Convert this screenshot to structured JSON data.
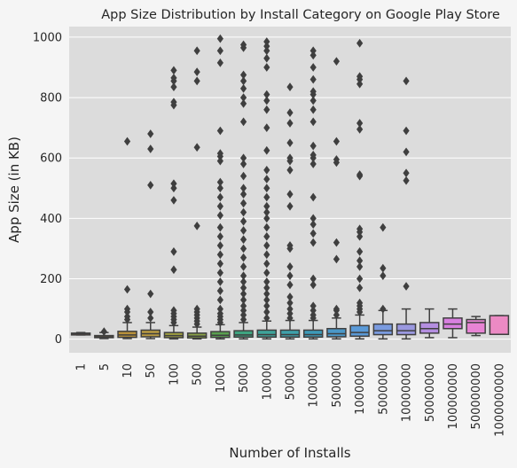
{
  "chart_data": {
    "type": "box",
    "title": "App Size Distribution by Install Category on Google Play Store",
    "xlabel": "Number of Installs",
    "ylabel": "App Size (in KB)",
    "ylim": [
      -45,
      1035
    ],
    "yticks": [
      0,
      200,
      400,
      600,
      800,
      1000
    ],
    "grid": true,
    "background": "#dcdcdc",
    "categories": [
      "1",
      "5",
      "10",
      "50",
      "100",
      "500",
      "1000",
      "5000",
      "10000",
      "50000",
      "100000",
      "500000",
      "1000000",
      "5000000",
      "10000000",
      "50000000",
      "100000000",
      "500000000",
      "1000000000"
    ],
    "boxes": [
      {
        "whislo": 14,
        "q1": 16,
        "med": 18,
        "q3": 20,
        "whishi": 22,
        "color": "#c8504b",
        "fliers": []
      },
      {
        "whislo": 2,
        "q1": 5,
        "med": 8,
        "q3": 12,
        "whishi": 22,
        "color": "#b07838",
        "fliers": [
          25
        ]
      },
      {
        "whislo": 2,
        "q1": 6,
        "med": 14,
        "q3": 26,
        "whishi": 55,
        "color": "#b8903a",
        "fliers": [
          65,
          75,
          90,
          100,
          165,
          655
        ]
      },
      {
        "whislo": 2,
        "q1": 8,
        "med": 18,
        "q3": 30,
        "whishi": 55,
        "color": "#b89a42",
        "fliers": [
          70,
          90,
          150,
          510,
          630,
          680
        ]
      },
      {
        "whislo": 1,
        "q1": 5,
        "med": 12,
        "q3": 22,
        "whishi": 45,
        "color": "#a0a040",
        "fliers": [
          55,
          65,
          75,
          85,
          95,
          230,
          290,
          460,
          500,
          515,
          775,
          785,
          835,
          855,
          865,
          890
        ]
      },
      {
        "whislo": 1,
        "q1": 4,
        "med": 10,
        "q3": 20,
        "whishi": 40,
        "color": "#8aa248",
        "fliers": [
          50,
          60,
          70,
          80,
          90,
          100,
          375,
          635,
          855,
          885,
          955
        ]
      },
      {
        "whislo": 1,
        "q1": 6,
        "med": 13,
        "q3": 25,
        "whishi": 48,
        "color": "#5aa050",
        "fliers": [
          55,
          65,
          75,
          85,
          100,
          130,
          160,
          190,
          220,
          250,
          280,
          310,
          340,
          370,
          410,
          440,
          470,
          500,
          520,
          590,
          605,
          615,
          690,
          915,
          955,
          995
        ]
      },
      {
        "whislo": 1,
        "q1": 7,
        "med": 14,
        "q3": 28,
        "whishi": 55,
        "color": "#3fa480",
        "fliers": [
          65,
          80,
          95,
          110,
          130,
          150,
          170,
          190,
          210,
          240,
          270,
          300,
          330,
          360,
          390,
          420,
          450,
          480,
          500,
          540,
          580,
          600,
          720,
          780,
          800,
          830,
          855,
          875,
          965,
          975
        ]
      },
      {
        "whislo": 1,
        "q1": 7,
        "med": 15,
        "q3": 30,
        "whishi": 60,
        "color": "#3ea39a",
        "fliers": [
          70,
          90,
          110,
          130,
          150,
          170,
          190,
          220,
          250,
          280,
          310,
          340,
          370,
          400,
          420,
          440,
          470,
          500,
          530,
          560,
          625,
          700,
          760,
          790,
          810,
          900,
          930,
          955,
          970,
          985
        ]
      },
      {
        "whislo": 1,
        "q1": 7,
        "med": 15,
        "q3": 30,
        "whishi": 62,
        "color": "#3fa0aa",
        "fliers": [
          70,
          85,
          100,
          120,
          140,
          180,
          210,
          240,
          300,
          310,
          440,
          480,
          560,
          590,
          600,
          650,
          715,
          750,
          835
        ]
      },
      {
        "whislo": 1,
        "q1": 7,
        "med": 15,
        "q3": 30,
        "whishi": 62,
        "color": "#3d9ab8",
        "fliers": [
          70,
          80,
          95,
          110,
          180,
          200,
          320,
          350,
          380,
          400,
          470,
          580,
          600,
          610,
          640,
          720,
          760,
          790,
          810,
          820,
          860,
          900,
          940,
          955
        ]
      },
      {
        "whislo": 1,
        "q1": 8,
        "med": 18,
        "q3": 35,
        "whishi": 70,
        "color": "#4a98c8",
        "fliers": [
          80,
          95,
          100,
          265,
          320,
          585,
          595,
          655,
          920
        ]
      },
      {
        "whislo": 1,
        "q1": 10,
        "med": 22,
        "q3": 45,
        "whishi": 80,
        "color": "#5a9ad8",
        "fliers": [
          90,
          100,
          110,
          120,
          170,
          200,
          240,
          260,
          290,
          340,
          355,
          365,
          540,
          545,
          695,
          715,
          845,
          860,
          870,
          980
        ]
      },
      {
        "whislo": 1,
        "q1": 15,
        "med": 28,
        "q3": 50,
        "whishi": 95,
        "color": "#7a9be0",
        "fliers": [
          100,
          210,
          235,
          370
        ]
      },
      {
        "whislo": 1,
        "q1": 15,
        "med": 28,
        "q3": 50,
        "whishi": 100,
        "color": "#9a98e0",
        "fliers": [
          175,
          525,
          550,
          620,
          690,
          855
        ]
      },
      {
        "whislo": 5,
        "q1": 20,
        "med": 35,
        "q3": 55,
        "whishi": 100,
        "color": "#b48ee0",
        "fliers": []
      },
      {
        "whislo": 5,
        "q1": 35,
        "med": 50,
        "q3": 70,
        "whishi": 100,
        "color": "#d880e0",
        "fliers": []
      },
      {
        "whislo": 12,
        "q1": 20,
        "med": 55,
        "q3": 65,
        "whishi": 75,
        "color": "#e884d4",
        "fliers": []
      },
      {
        "whislo": 16,
        "q1": 16,
        "med": 16,
        "q3": 78,
        "whishi": 78,
        "color": "#ec8ac4",
        "fliers": []
      }
    ]
  }
}
